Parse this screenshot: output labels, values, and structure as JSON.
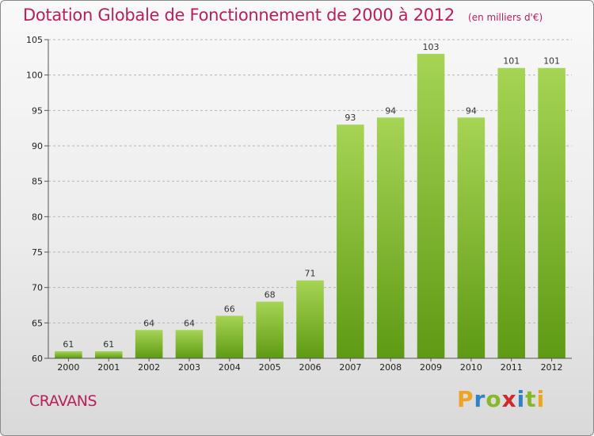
{
  "header": {
    "title": "Dotation Globale de Fonctionnement de 2000 à 2012",
    "unit": "(en milliers d'€)"
  },
  "footer": {
    "commune": "CRAVANS",
    "logo_text": "Proxiti"
  },
  "colors": {
    "title": "#b81f5b",
    "bar_top": "#a6d454",
    "bar_bottom": "#5e9a14"
  },
  "chart_data": {
    "type": "bar",
    "title": "Dotation Globale de Fonctionnement de 2000 à 2012",
    "subtitle": "(en milliers d'€)",
    "xlabel": "",
    "ylabel": "",
    "categories": [
      "2000",
      "2001",
      "2002",
      "2003",
      "2004",
      "2005",
      "2006",
      "2007",
      "2008",
      "2009",
      "2010",
      "2011",
      "2012"
    ],
    "values": [
      61,
      61,
      64,
      64,
      66,
      68,
      71,
      93,
      94,
      103,
      94,
      101,
      101
    ],
    "ylim": [
      60,
      105
    ],
    "yticks": [
      60,
      65,
      70,
      75,
      80,
      85,
      90,
      95,
      100,
      105
    ],
    "grid": "horizontal dashed",
    "data_labels": true
  }
}
